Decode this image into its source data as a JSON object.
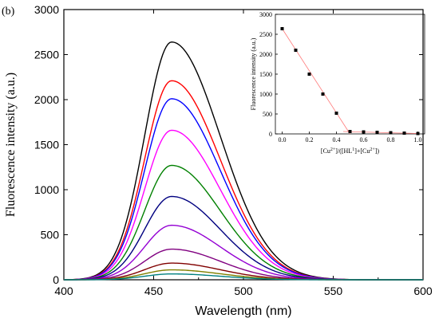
{
  "panel_label": "(b)",
  "chart_data": [
    {
      "type": "line",
      "xlabel": "Wavelength (nm)",
      "ylabel": "Fluorescence intensity (a.u.)",
      "xlim": [
        400,
        600
      ],
      "ylim": [
        0,
        3000
      ],
      "xticks": [
        400,
        450,
        500,
        550,
        600
      ],
      "yticks": [
        0,
        500,
        1000,
        1500,
        2000,
        2500,
        3000
      ],
      "grid": false,
      "peak_wavelength": 460,
      "series": [
        {
          "color": "#000000",
          "peak": 2640
        },
        {
          "color": "#ff0000",
          "peak": 2210
        },
        {
          "color": "#0000ff",
          "peak": 2010
        },
        {
          "color": "#ff00ff",
          "peak": 1660
        },
        {
          "color": "#008000",
          "peak": 1270
        },
        {
          "color": "#000080",
          "peak": 925
        },
        {
          "color": "#9400d3",
          "peak": 605
        },
        {
          "color": "#800080",
          "peak": 340
        },
        {
          "color": "#800000",
          "peak": 185
        },
        {
          "color": "#808000",
          "peak": 110
        },
        {
          "color": "#008080",
          "peak": 65
        }
      ]
    },
    {
      "type": "scatter",
      "xlabel": "[Cu2+]/([HL1]+[Cu2+])",
      "ylabel": "Fluorescence intensity (a.u.)",
      "xlim": [
        -0.05,
        1.05
      ],
      "ylim": [
        0,
        3000
      ],
      "xticks": [
        0.0,
        0.2,
        0.4,
        0.6,
        0.8,
        1.0
      ],
      "xtick_labels": [
        "0.0",
        "0.2",
        "0.4",
        "0.6",
        "0.8",
        "1.0"
      ],
      "yticks": [
        0,
        500,
        1000,
        1500,
        2000,
        2500,
        3000
      ],
      "x": [
        0.0,
        0.1,
        0.2,
        0.3,
        0.4,
        0.5,
        0.6,
        0.7,
        0.8,
        0.9,
        1.0
      ],
      "y": [
        2640,
        2100,
        1500,
        1000,
        520,
        60,
        50,
        40,
        30,
        20,
        10
      ],
      "fit_lines": [
        {
          "x": [
            0.0,
            0.5
          ],
          "y": [
            2640,
            0
          ]
        },
        {
          "x": [
            0.45,
            1.0
          ],
          "y": [
            60,
            10
          ]
        }
      ]
    }
  ]
}
